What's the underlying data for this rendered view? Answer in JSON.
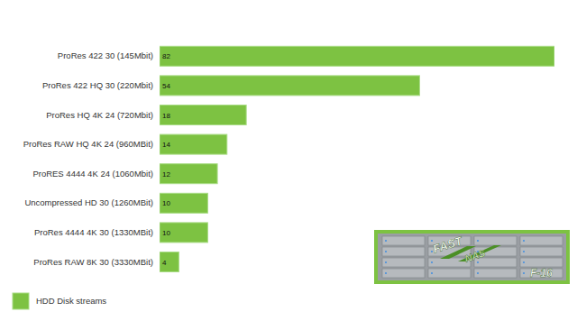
{
  "chart_data": {
    "type": "bar",
    "orientation": "horizontal",
    "categories": [
      "ProRes 422 30 (145Mbit)",
      "ProRes 422 HQ 30 (220Mbit)",
      "ProRes HQ 4K 24 (720Mbit)",
      "ProRes RAW HQ 4K 24 (960MBit)",
      "ProRES 4444 4K 24 (1060Mbit)",
      "Uncompressed HD 30 (1260MBit)",
      "ProRes 4444 4K 30 (1330MBit)",
      "ProRes RAW 8K 30 (3330MBit)"
    ],
    "series": [
      {
        "name": "HDD Disk streams",
        "color": "#7dc242",
        "values": [
          82,
          54,
          18,
          14,
          12,
          10,
          10,
          4
        ]
      }
    ],
    "xlim": [
      0,
      82
    ],
    "tick_labels": false,
    "grid": false,
    "data_labels": true,
    "legend": "bottom-left",
    "annotations": [
      "FAST",
      "NAS",
      "F-16"
    ]
  }
}
